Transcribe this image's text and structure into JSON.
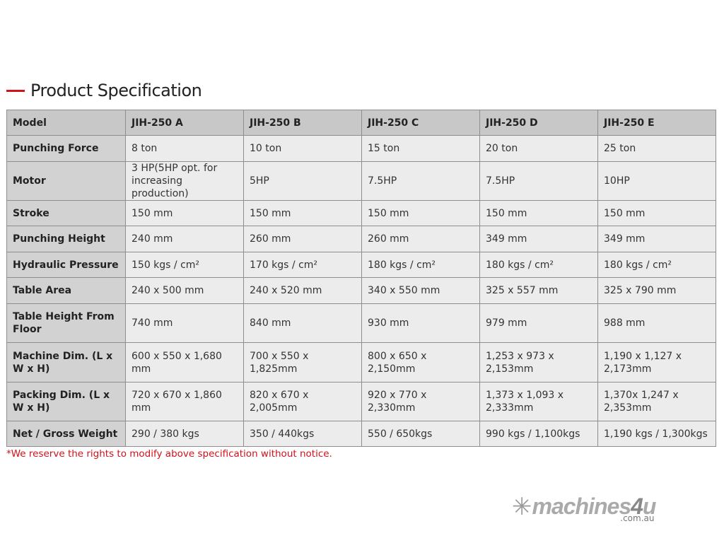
{
  "heading": "Product Specification",
  "columns": [
    "Model",
    "JIH-250 A",
    "JIH-250 B",
    "JIH-250 C",
    "JIH-250 D",
    "JIH-250 E"
  ],
  "rows": [
    {
      "label": "Punching Force",
      "values": [
        "8 ton",
        "10 ton",
        "15 ton",
        "20 ton",
        "25 ton"
      ]
    },
    {
      "label": "Motor",
      "values": [
        "3 HP(5HP opt. for increasing production)",
        "5HP",
        "7.5HP",
        "7.5HP",
        "10HP"
      ]
    },
    {
      "label": "Stroke",
      "values": [
        "150 mm",
        "150 mm",
        "150 mm",
        "150 mm",
        "150 mm"
      ]
    },
    {
      "label": "Punching Height",
      "values": [
        "240 mm",
        "260 mm",
        "260 mm",
        "349 mm",
        "349 mm"
      ]
    },
    {
      "label": "Hydraulic Pressure",
      "values": [
        "150 kgs / cm²",
        "170 kgs / cm²",
        "180 kgs / cm²",
        "180 kgs / cm²",
        "180 kgs / cm²"
      ]
    },
    {
      "label": "Table Area",
      "values": [
        "240 x 500 mm",
        "240 x 520 mm",
        "340 x 550 mm",
        "325 x 557 mm",
        "325 x 790 mm"
      ]
    },
    {
      "label": "Table Height From Floor",
      "values": [
        "740 mm",
        "840 mm",
        "930 mm",
        "979 mm",
        "988 mm"
      ]
    },
    {
      "label": "Machine Dim. (L x W x H)",
      "values": [
        "600 x 550 x 1,680 mm",
        "700 x 550 x 1,825mm",
        "800 x 650 x 2,150mm",
        "1,253 x 973 x 2,153mm",
        "1,190 x 1,127 x 2,173mm"
      ]
    },
    {
      "label": "Packing Dim. (L x W x H)",
      "values": [
        "720 x 670 x 1,860 mm",
        "820 x 670 x 2,005mm",
        "920 x 770 x 2,330mm",
        "1,373 x 1,093 x 2,333mm",
        "1,370x 1,247 x 2,353mm"
      ]
    },
    {
      "label": "Net / Gross Weight",
      "values": [
        "290 / 380 kgs",
        "350 / 440kgs",
        "550 / 650kgs",
        "990 kgs / 1,100kgs",
        "1,190 kgs / 1,300kgs"
      ]
    }
  ],
  "note": "*We reserve the rights to modify above specification without notice.",
  "logo": {
    "name": "machines4u",
    "domain": ".com.au"
  },
  "colors": {
    "accent": "#d0121b",
    "header": "#c8c8c8",
    "cell": "#ececec"
  }
}
